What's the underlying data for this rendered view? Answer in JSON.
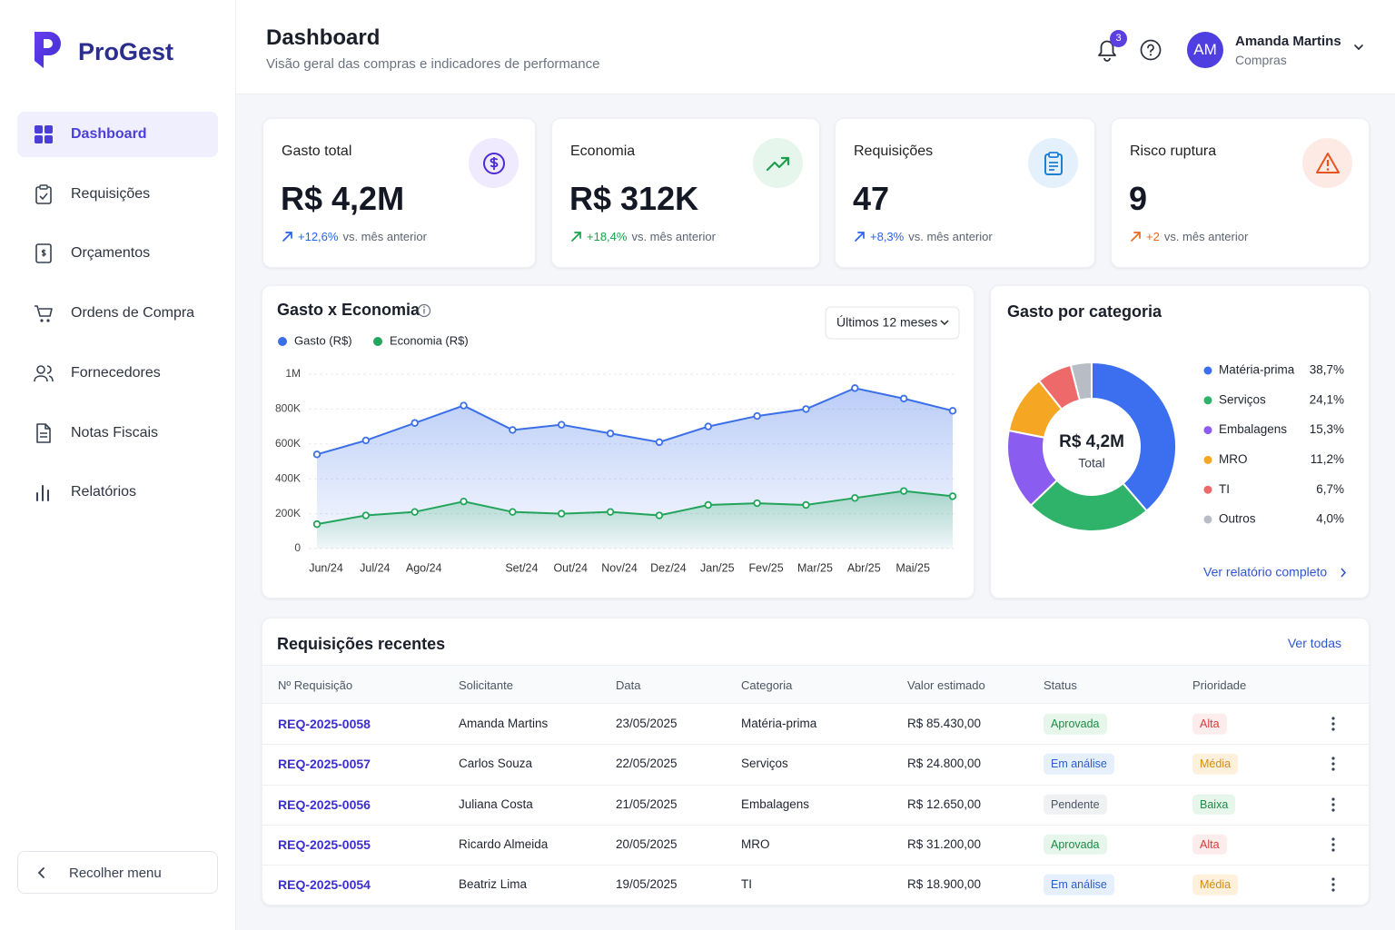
{
  "sidebar": {
    "brand": "ProGest",
    "nav": [
      "Dashboard",
      "Requisições",
      "Orçamentos",
      "Ordens de Compra",
      "Fornecedores",
      "Notas Fiscais",
      "Relatórios"
    ],
    "collapse": "Recolher menu"
  },
  "header": {
    "title": "Dashboard",
    "subtitle": "Visão geral das compras e indicadores de performance",
    "notifications": 3,
    "avatar": "AM",
    "user_name": "Amanda Martins",
    "user_role": "Compras"
  },
  "kpis": [
    {
      "title": "Gasto total",
      "value": "R$ 4,2M",
      "change": "+12,6%",
      "note": "vs. mês anterior"
    },
    {
      "title": "Economia",
      "value": "R$ 312K",
      "change": "+18,4%",
      "note": "vs. mês anterior"
    },
    {
      "title": "Requisições",
      "value": "47",
      "change": "+8,3%",
      "note": "vs. mês anterior"
    },
    {
      "title": "Risco ruptura",
      "value": "9",
      "change": "+2",
      "note": "vs. mês anterior"
    }
  ],
  "chart_data": [
    {
      "type": "line",
      "title": "Gasto x Economia",
      "period": "Últimos 12 meses",
      "categories": [
        "Jun/24",
        "Jul/24",
        "Ago/24",
        null,
        "Set/24",
        "Out/24",
        "Nov/24",
        "Dez/24",
        "Jan/25",
        "Fev/25",
        "Mar/25",
        "Abr/25",
        "Mai/25",
        null
      ],
      "series": [
        {
          "name": "Gasto (R$)",
          "color": "#3b6fe8",
          "values": [
            540000,
            620000,
            720000,
            820000,
            680000,
            710000,
            660000,
            610000,
            700000,
            760000,
            800000,
            920000,
            860000,
            790000
          ]
        },
        {
          "name": "Economia (R$)",
          "color": "#22a55a",
          "values": [
            140000,
            190000,
            210000,
            270000,
            210000,
            200000,
            210000,
            190000,
            250000,
            260000,
            250000,
            290000,
            330000,
            300000
          ]
        }
      ],
      "ylim": [
        0,
        1000000
      ],
      "yticks": [
        0,
        {
          "value": 200000,
          "label": "200K"
        },
        {
          "value": 400000,
          "label": "400K"
        },
        {
          "value": 600000,
          "label": "600K"
        },
        {
          "value": 800000,
          "label": "800K"
        },
        {
          "value": 1000000,
          "label": "1M"
        }
      ],
      "grid": true
    },
    {
      "type": "pie",
      "title": "Gasto por categoria",
      "center_value": "R$ 4,2M",
      "center_label": "Total",
      "categories": [
        "Matéria-prima",
        "Serviços",
        "Embalagens",
        "MRO",
        "TI",
        "Outros"
      ],
      "values": [
        38.7,
        24.1,
        15.3,
        11.2,
        6.7,
        4.0
      ],
      "value_labels": [
        "38,7%",
        "24,1%",
        "15,3%",
        "11,2%",
        "6,7%",
        "4,0%"
      ],
      "colors": [
        "#3b6ff0",
        "#2fb36a",
        "#8b5cf0",
        "#f5a623",
        "#ee6a6a",
        "#b8bcc4"
      ],
      "link": "Ver relatório completo"
    }
  ],
  "table": {
    "title": "Requisições recentes",
    "link": "Ver todas",
    "columns": [
      "Nº Requisição",
      "Solicitante",
      "Data",
      "Categoria",
      "Valor estimado",
      "Status",
      "Prioridade"
    ],
    "rows": [
      [
        "REQ-2025-0058",
        "Amanda Martins",
        "23/05/2025",
        "Matéria-prima",
        "R$ 85.430,00",
        "Aprovada",
        "Alta"
      ],
      [
        "REQ-2025-0057",
        "Carlos Souza",
        "22/05/2025",
        "Serviços",
        "R$ 24.800,00",
        "Em análise",
        "Média"
      ],
      [
        "REQ-2025-0056",
        "Juliana Costa",
        "21/05/2025",
        "Embalagens",
        "R$ 12.650,00",
        "Pendente",
        "Baixa"
      ],
      [
        "REQ-2025-0055",
        "Ricardo Almeida",
        "20/05/2025",
        "MRO",
        "R$ 31.200,00",
        "Aprovada",
        "Alta"
      ],
      [
        "REQ-2025-0054",
        "Beatriz Lima",
        "19/05/2025",
        "TI",
        "R$ 18.900,00",
        "Em análise",
        "Média"
      ]
    ]
  }
}
